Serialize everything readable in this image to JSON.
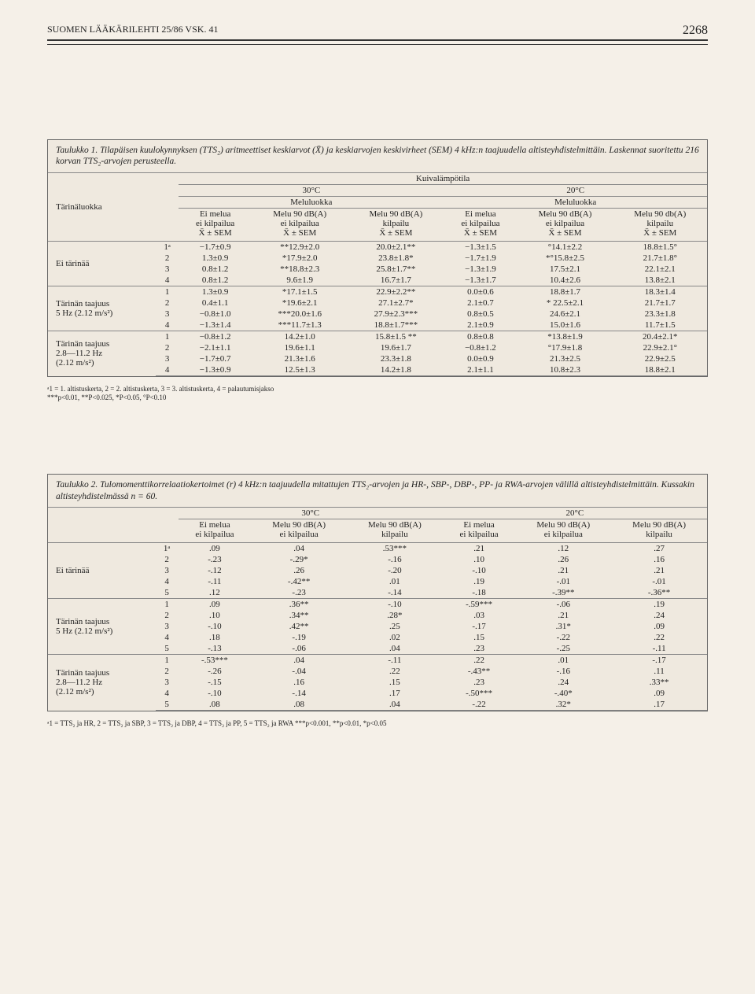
{
  "header": {
    "journal": "SUOMEN LÄÄKÄRILEHTI 25/86 VSK. 41",
    "page": "2268"
  },
  "table1": {
    "caption": "Taulukko 1. Tilapäisen kuulokynnyksen (TTS₂) aritmeettiset keskiarvot (X̄) ja keskiarvojen keskivirheet (SEM) 4 kHz:n taajuudella altisteyhdistelmittäin. Laskennat suoritettu 216 korvan TTS₂-arvojen perusteella.",
    "headers": {
      "tarina": "Tärinäluokka",
      "kuiva": "Kuivalämpötila",
      "c30": "30°C",
      "c20": "20°C",
      "melu": "Meluluokka",
      "col1": "Ei melua\nei kilpailua\nX̄ ± SEM",
      "col2": "Melu 90 dB(A)\nei kilpailua\nX̄ ± SEM",
      "col3": "Melu 90 dB(A)\nkilpailu\nX̄ ± SEM",
      "col4": "Ei melua\nei kilpailua\nX̄ ± SEM",
      "col5": "Melu 90 dB(A)\nei kilpailua\nX̄ ± SEM",
      "col6": "Melu 90 db(A)\nkilpailu\nX̄ ± SEM"
    },
    "groups": [
      {
        "label": "Ei tärinää",
        "rows": [
          {
            "n": "1ᵃ",
            "c": [
              "−1.7±0.9",
              "**12.9±2.0",
              "20.0±2.1**",
              "−1.3±1.5",
              "°14.1±2.2",
              "18.8±1.5°"
            ]
          },
          {
            "n": "2",
            "c": [
              "1.3±0.9",
              "*17.9±2.0",
              "23.8±1.8*",
              "−1.7±1.9",
              "*°15.8±2.5",
              "21.7±1.8°"
            ]
          },
          {
            "n": "3",
            "c": [
              "0.8±1.2",
              "**18.8±2.3",
              "25.8±1.7**",
              "−1.3±1.9",
              "17.5±2.1",
              "22.1±2.1"
            ]
          },
          {
            "n": "4",
            "c": [
              "0.8±1.2",
              "9.6±1.9",
              "16.7±1.7",
              "−1.3±1.7",
              "10.4±2.6",
              "13.8±2.1"
            ]
          }
        ]
      },
      {
        "label": "Tärinän taajuus\n5 Hz (2.12 m/s²)",
        "rows": [
          {
            "n": "1",
            "c": [
              "1.3±0.9",
              "*17.1±1.5",
              "22.9±2.2**",
              "0.0±0.6",
              "18.8±1.7",
              "18.3±1.4"
            ]
          },
          {
            "n": "2",
            "c": [
              "0.4±1.1",
              "*19.6±2.1",
              "27.1±2.7*",
              "2.1±0.7",
              "* 22.5±2.1",
              "21.7±1.7"
            ]
          },
          {
            "n": "3",
            "c": [
              "−0.8±1.0",
              "***20.0±1.6",
              "27.9±2.3***",
              "0.8±0.5",
              "24.6±2.1",
              "23.3±1.8"
            ]
          },
          {
            "n": "4",
            "c": [
              "−1.3±1.4",
              "***11.7±1.3",
              "18.8±1.7***",
              "2.1±0.9",
              "15.0±1.6",
              "11.7±1.5"
            ]
          }
        ]
      },
      {
        "label": "Tärinän taajuus\n2.8—11.2 Hz\n(2.12 m/s²)",
        "rows": [
          {
            "n": "1",
            "c": [
              "−0.8±1.2",
              "14.2±1.0",
              "15.8±1.5 **",
              "0.8±0.8",
              "*13.8±1.9",
              "20.4±2.1*"
            ]
          },
          {
            "n": "2",
            "c": [
              "−2.1±1.1",
              "19.6±1.1",
              "19.6±1.7",
              "−0.8±1.2",
              "°17.9±1.8",
              "22.9±2.1°"
            ]
          },
          {
            "n": "3",
            "c": [
              "−1.7±0.7",
              "21.3±1.6",
              "23.3±1.8",
              "0.0±0.9",
              "21.3±2.5",
              "22.9±2.5"
            ]
          },
          {
            "n": "4",
            "c": [
              "−1.3±0.9",
              "12.5±1.3",
              "14.2±1.8",
              "2.1±1.1",
              "10.8±2.3",
              "18.8±2.1"
            ]
          }
        ]
      }
    ],
    "footnote": "ᵃ1 = 1. altistuskerta, 2 = 2. altistuskerta, 3 = 3. altistuskerta, 4 = palautumisjakso\n***p<0.01, **P<0.025, *P<0.05, °P<0.10"
  },
  "table2": {
    "caption": "Taulukko 2. Tulomomenttikorrelaatiokertoimet (r) 4 kHz:n taajuudella mitattujen TTS₂-arvojen ja HR-, SBP-, DBP-, PP- ja RWA-arvojen välillä altisteyhdistelmittäin. Kussakin altisteyhdistelmässä n = 60.",
    "headers": {
      "c30": "30°C",
      "c20": "20°C",
      "col1": "Ei melua\nei kilpailua",
      "col2": "Melu 90 dB(A)\nei kilpailua",
      "col3": "Melu 90 dB(A)\nkilpailu",
      "col4": "Ei melua\nei kilpailua",
      "col5": "Melu 90 dB(A)\nei kilpailua",
      "col6": "Melu 90 dB(A)\nkilpailu"
    },
    "groups": [
      {
        "label": "Ei tärinää",
        "rows": [
          {
            "n": "1ᵃ",
            "c": [
              ".09",
              ".04",
              ".53***",
              ".21",
              ".12",
              ".27"
            ]
          },
          {
            "n": "2",
            "c": [
              "-.23",
              "-.29*",
              "-.16",
              ".10",
              ".26",
              ".16"
            ]
          },
          {
            "n": "3",
            "c": [
              "-.12",
              ".26",
              "-.20",
              "-.10",
              ".21",
              ".21"
            ]
          },
          {
            "n": "4",
            "c": [
              "-.11",
              "-.42**",
              ".01",
              ".19",
              "-.01",
              "-.01"
            ]
          },
          {
            "n": "5",
            "c": [
              ".12",
              "-.23",
              "-.14",
              "-.18",
              "-.39**",
              "-.36**"
            ]
          }
        ]
      },
      {
        "label": "Tärinän taajuus\n5 Hz (2.12 m/s²)",
        "rows": [
          {
            "n": "1",
            "c": [
              ".09",
              ".36**",
              "-.10",
              "-.59***",
              "-.06",
              ".19"
            ]
          },
          {
            "n": "2",
            "c": [
              ".10",
              ".34**",
              ".28*",
              ".03",
              ".21",
              ".24"
            ]
          },
          {
            "n": "3",
            "c": [
              "-.10",
              ".42**",
              ".25",
              "-.17",
              ".31*",
              ".09"
            ]
          },
          {
            "n": "4",
            "c": [
              ".18",
              "-.19",
              ".02",
              ".15",
              "-.22",
              ".22"
            ]
          },
          {
            "n": "5",
            "c": [
              "-.13",
              "-.06",
              ".04",
              ".23",
              "-.25",
              "-.11"
            ]
          }
        ]
      },
      {
        "label": "Tärinän taajuus\n2.8—11.2 Hz\n(2.12 m/s²)",
        "rows": [
          {
            "n": "1",
            "c": [
              "-.53***",
              ".04",
              "-.11",
              ".22",
              ".01",
              "-.17"
            ]
          },
          {
            "n": "2",
            "c": [
              "-.26",
              "-.04",
              ".22",
              "-.43**",
              "-.16",
              ".11"
            ]
          },
          {
            "n": "3",
            "c": [
              "-.15",
              ".16",
              ".15",
              ".23",
              ".24",
              ".33**"
            ]
          },
          {
            "n": "4",
            "c": [
              "-.10",
              "-.14",
              ".17",
              "-.50***",
              "-.40*",
              ".09"
            ]
          },
          {
            "n": "5",
            "c": [
              ".08",
              ".08",
              ".04",
              "-.22",
              ".32*",
              ".17"
            ]
          }
        ]
      }
    ],
    "footnote": "ᵃ1 = TTS₂ ja HR, 2 = TTS₂ ja SBP, 3 = TTS₂ ja DBP, 4 = TTS₂ ja PP, 5 = TTS₂ ja RWA\n***p<0.001, **p<0.01, *p<0.05"
  }
}
